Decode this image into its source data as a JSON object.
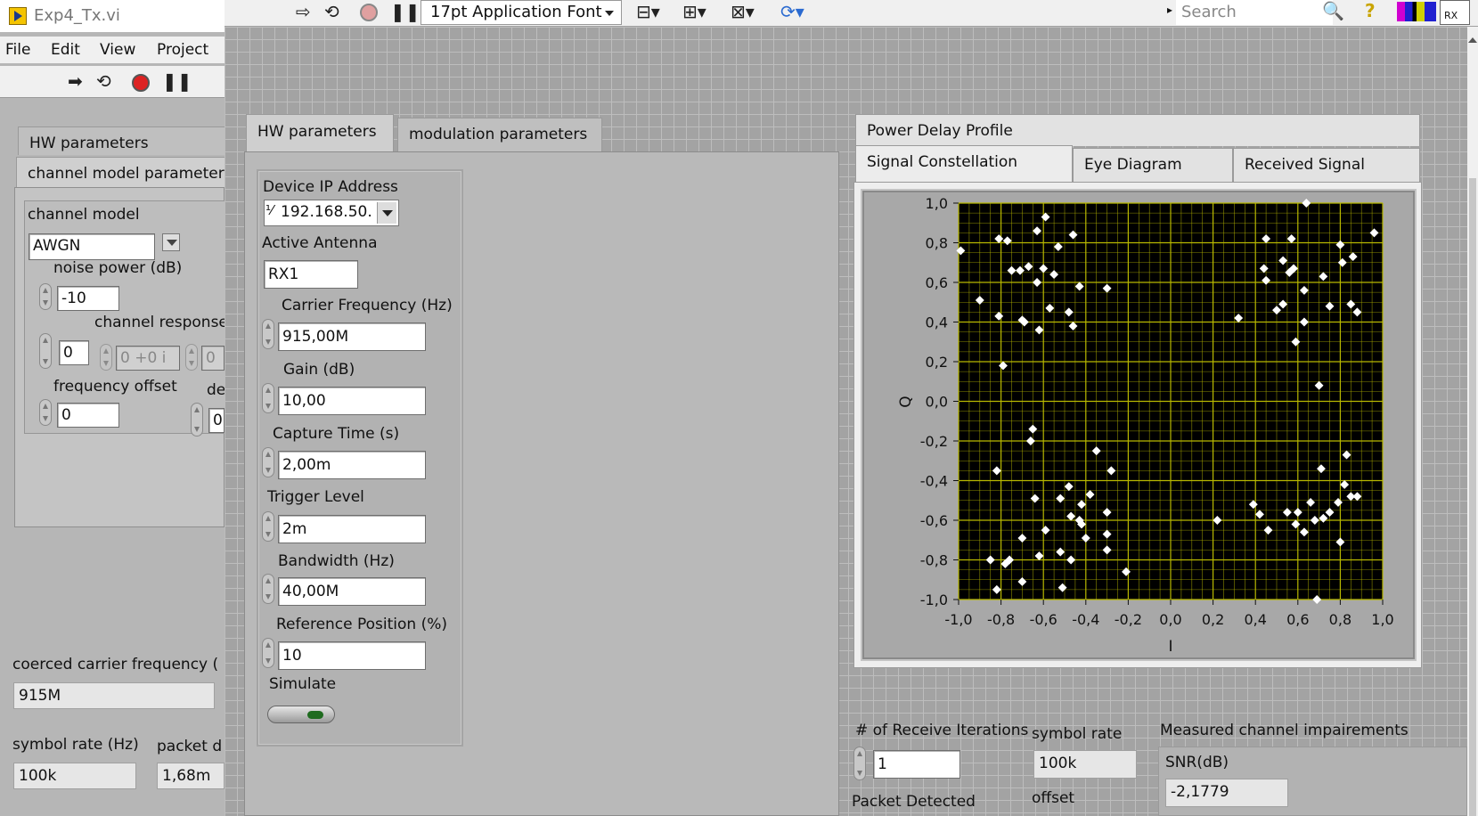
{
  "left_window": {
    "title": "Exp4_Tx.vi",
    "menu": [
      "File",
      "Edit",
      "View",
      "Project"
    ],
    "tabs": [
      "HW parameters",
      "channel model parameter"
    ],
    "channel_model_label": "channel model",
    "channel_model_value": "AWGN",
    "noise_power_label": "noise power (dB)",
    "noise_power_value": "-10",
    "channel_response_label": "channel response",
    "channel_response_index": "0",
    "channel_response_value": "0 +0 i",
    "channel_response_value2": "0",
    "frequency_offset_label": "frequency offset",
    "frequency_offset_value": "0",
    "de_label": "de",
    "de_value": "0",
    "coerced_label": "coerced carrier frequency (",
    "coerced_value": "915M",
    "symbol_rate_label": "symbol rate (Hz)",
    "symbol_rate_value": "100k",
    "packet_label": "packet d",
    "packet_value": "1,68m"
  },
  "toolbar": {
    "font_select": "17pt Application Font",
    "search_placeholder": "Search",
    "rx_badge": "RX"
  },
  "hw_panel": {
    "tabs": [
      "HW parameters",
      "modulation parameters"
    ],
    "device_ip_label": "Device IP Address",
    "device_ip_value": "192.168.50.",
    "active_antenna_label": "Active Antenna",
    "active_antenna_value": "RX1",
    "carrier_freq_label": "Carrier Frequency (Hz)",
    "carrier_freq_value": "915,00M",
    "gain_label": "Gain (dB)",
    "gain_value": "10,00",
    "capture_time_label": "Capture Time (s)",
    "capture_time_value": "2,00m",
    "trigger_level_label": "Trigger Level",
    "trigger_level_value": "2m",
    "bandwidth_label": "Bandwidth (Hz)",
    "bandwidth_value": "40,00M",
    "ref_position_label": "Reference Position (%)",
    "ref_position_value": "10",
    "simulate_label": "Simulate"
  },
  "graph_tabs": {
    "row1": [
      "Power Delay Profile"
    ],
    "row2": [
      "Signal Constellation",
      "Eye Diagram",
      "Received Signal"
    ]
  },
  "bottom": {
    "receive_iter_label": "# of Receive Iterations",
    "receive_iter_value": "1",
    "packet_detected_label": "Packet Detected",
    "symbol_rate_label": "symbol rate",
    "symbol_rate_value": "100k",
    "offset_label": "offset",
    "impairments_label": "Measured channel impairements",
    "snr_label": "SNR(dB)",
    "snr_value": "-2,1779"
  },
  "chart_data": {
    "type": "scatter",
    "title": "",
    "xlabel": "I",
    "ylabel": "Q",
    "xlim": [
      -1.0,
      1.0
    ],
    "ylim": [
      -1.0,
      1.0
    ],
    "x_ticks": [
      "-1,0",
      "-0,8",
      "-0,6",
      "-0,4",
      "-0,2",
      "0,0",
      "0,2",
      "0,4",
      "0,6",
      "0,8",
      "1,0"
    ],
    "y_ticks": [
      "1,0",
      "0,8",
      "0,6",
      "0,4",
      "0,2",
      "0,0",
      "-0,2",
      "-0,4",
      "-0,6",
      "-0,8",
      "-1,0"
    ],
    "grid": true,
    "colors": {
      "background": "#000000",
      "grid": "#b8b800",
      "point": "#ffffff"
    },
    "points": [
      [
        -0.99,
        0.76
      ],
      [
        -0.81,
        0.82
      ],
      [
        -0.77,
        0.81
      ],
      [
        -0.9,
        0.51
      ],
      [
        -0.81,
        0.43
      ],
      [
        -0.79,
        0.18
      ],
      [
        -0.75,
        0.66
      ],
      [
        -0.71,
        0.66
      ],
      [
        -0.67,
        0.68
      ],
      [
        -0.63,
        0.86
      ],
      [
        -0.59,
        0.93
      ],
      [
        -0.53,
        0.78
      ],
      [
        -0.46,
        0.84
      ],
      [
        -0.7,
        0.41
      ],
      [
        -0.69,
        0.4
      ],
      [
        -0.62,
        0.36
      ],
      [
        -0.57,
        0.47
      ],
      [
        -0.63,
        0.6
      ],
      [
        -0.6,
        0.67
      ],
      [
        -0.55,
        0.64
      ],
      [
        -0.48,
        0.45
      ],
      [
        -0.46,
        0.38
      ],
      [
        -0.43,
        0.58
      ],
      [
        -0.3,
        0.57
      ],
      [
        0.32,
        0.42
      ],
      [
        0.45,
        0.82
      ],
      [
        0.44,
        0.67
      ],
      [
        0.45,
        0.61
      ],
      [
        0.5,
        0.46
      ],
      [
        0.53,
        0.49
      ],
      [
        0.53,
        0.71
      ],
      [
        0.56,
        0.65
      ],
      [
        0.58,
        0.67
      ],
      [
        0.57,
        0.82
      ],
      [
        0.59,
        0.3
      ],
      [
        0.63,
        0.56
      ],
      [
        0.63,
        0.4
      ],
      [
        0.64,
        1.0
      ],
      [
        0.72,
        0.63
      ],
      [
        0.75,
        0.48
      ],
      [
        0.8,
        0.79
      ],
      [
        0.81,
        0.7
      ],
      [
        0.85,
        0.49
      ],
      [
        0.86,
        0.73
      ],
      [
        0.88,
        0.45
      ],
      [
        0.96,
        0.85
      ],
      [
        0.7,
        0.08
      ],
      [
        -0.65,
        -0.14
      ],
      [
        -0.66,
        -0.2
      ],
      [
        -0.82,
        -0.35
      ],
      [
        -0.64,
        -0.49
      ],
      [
        -0.59,
        -0.65
      ],
      [
        -0.7,
        -0.69
      ],
      [
        -0.62,
        -0.78
      ],
      [
        -0.76,
        -0.8
      ],
      [
        -0.85,
        -0.8
      ],
      [
        -0.78,
        -0.82
      ],
      [
        -0.7,
        -0.91
      ],
      [
        -0.82,
        -0.95
      ],
      [
        -0.52,
        -0.49
      ],
      [
        -0.48,
        -0.43
      ],
      [
        -0.47,
        -0.58
      ],
      [
        -0.42,
        -0.52
      ],
      [
        -0.42,
        -0.62
      ],
      [
        -0.38,
        -0.47
      ],
      [
        -0.35,
        -0.25
      ],
      [
        -0.3,
        -0.56
      ],
      [
        -0.28,
        -0.35
      ],
      [
        -0.3,
        -0.67
      ],
      [
        -0.3,
        -0.75
      ],
      [
        -0.21,
        -0.86
      ],
      [
        -0.4,
        -0.69
      ],
      [
        -0.47,
        -0.8
      ],
      [
        -0.52,
        -0.76
      ],
      [
        -0.51,
        -0.94
      ],
      [
        -0.43,
        -0.6
      ],
      [
        0.22,
        -0.6
      ],
      [
        0.39,
        -0.52
      ],
      [
        0.42,
        -0.57
      ],
      [
        0.46,
        -0.65
      ],
      [
        0.55,
        -0.56
      ],
      [
        0.59,
        -0.62
      ],
      [
        0.6,
        -0.56
      ],
      [
        0.63,
        -0.66
      ],
      [
        0.66,
        -0.51
      ],
      [
        0.68,
        -0.6
      ],
      [
        0.72,
        -0.59
      ],
      [
        0.75,
        -0.56
      ],
      [
        0.79,
        -0.51
      ],
      [
        0.8,
        -0.71
      ],
      [
        0.82,
        -0.42
      ],
      [
        0.83,
        -0.27
      ],
      [
        0.85,
        -0.48
      ],
      [
        0.88,
        -0.48
      ],
      [
        0.71,
        -0.34
      ],
      [
        0.69,
        -1.0
      ]
    ]
  }
}
